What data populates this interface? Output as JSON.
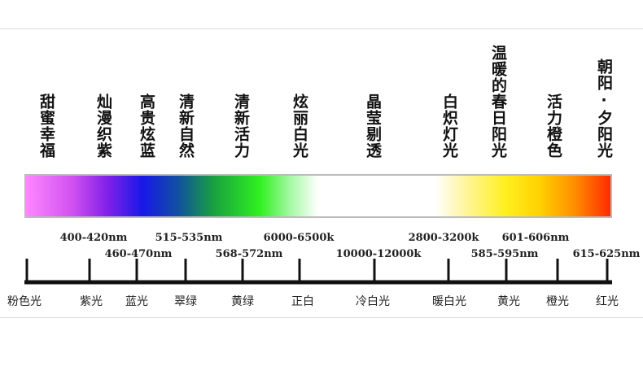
{
  "effects": [
    "甜蜜幸福",
    "灿漫织紫",
    "高贵炫蓝",
    "清新自然",
    "清新活力",
    "炫丽白光",
    "晶莹剔透",
    "白炽灯光",
    "温暖的春日阳光",
    "活力橙色",
    "朝阳·夕阳光"
  ],
  "ranges": [
    "400-420nm",
    "460-470nm",
    "515-535nm",
    "568-572nm",
    "6000-6500k",
    "10000-12000k",
    "2800-3200k",
    "585-595nm",
    "601-606nm",
    "615-625nm"
  ],
  "colors": [
    "粉色光",
    "紫光",
    "蓝光",
    "翠绿",
    "黄绿",
    "正白",
    "冷白光",
    "暖白光",
    "黄光",
    "橙光",
    "红光"
  ]
}
